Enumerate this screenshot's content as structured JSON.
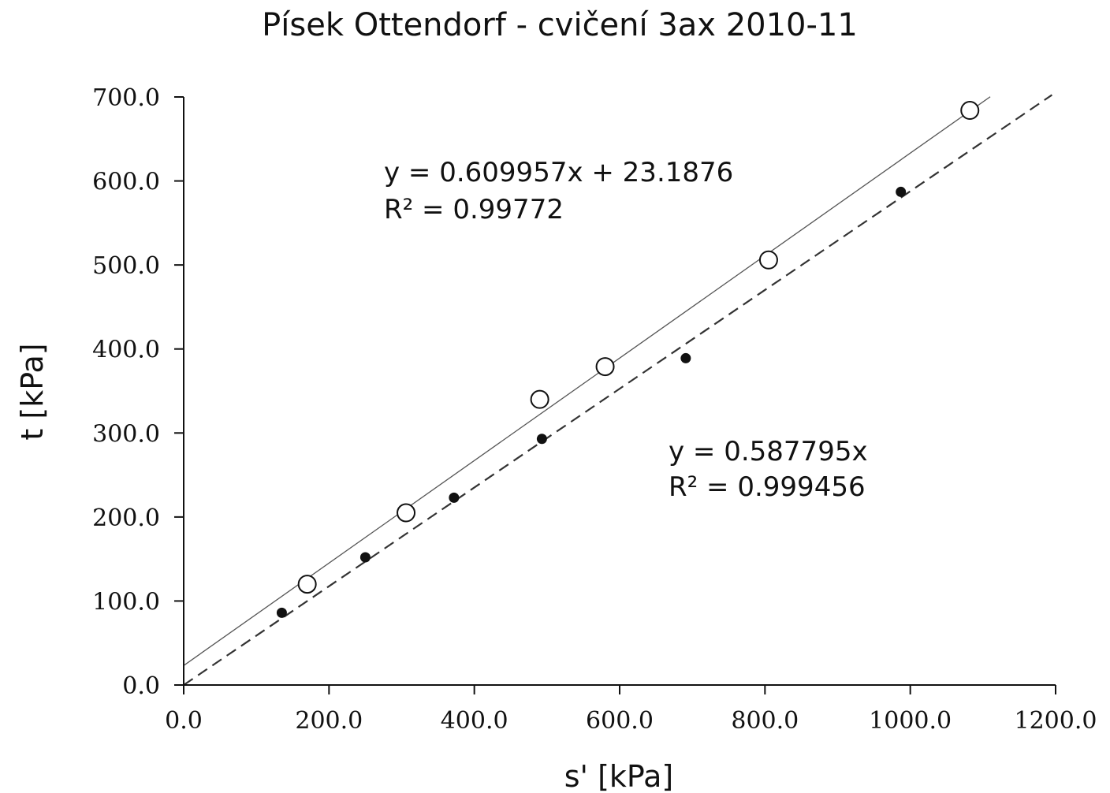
{
  "chart_data": {
    "type": "scatter",
    "title": "Písek Ottendorf - cvičení 3ax 2010-11",
    "xlabel": "s' [kPa]",
    "ylabel": "t [kPa]",
    "xlim": [
      0,
      1200
    ],
    "ylim": [
      0,
      700
    ],
    "x_ticks": [
      "0.0",
      "200.0",
      "400.0",
      "600.0",
      "800.0",
      "1000.0",
      "1200.0"
    ],
    "y_ticks": [
      "0.0",
      "100.0",
      "200.0",
      "300.0",
      "400.0",
      "500.0",
      "600.0",
      "700.0"
    ],
    "grid": false,
    "series": [
      {
        "marker": "open-circle",
        "color": "#111111",
        "points": [
          {
            "x": 170,
            "y": 120
          },
          {
            "x": 306,
            "y": 205
          },
          {
            "x": 490,
            "y": 340
          },
          {
            "x": 580,
            "y": 379
          },
          {
            "x": 805,
            "y": 506
          },
          {
            "x": 1082,
            "y": 684
          }
        ]
      },
      {
        "marker": "filled-circle",
        "color": "#111111",
        "points": [
          {
            "x": 135,
            "y": 86
          },
          {
            "x": 250,
            "y": 152
          },
          {
            "x": 372,
            "y": 223
          },
          {
            "x": 493,
            "y": 293
          },
          {
            "x": 691,
            "y": 389
          },
          {
            "x": 987,
            "y": 587
          }
        ]
      }
    ],
    "trendlines": [
      {
        "style": "solid-thin",
        "slope": 0.609957,
        "intercept": 23.1876,
        "x_range": [
          0,
          1110
        ],
        "equation": "y = 0.609957x + 23.1876",
        "r2": "R² = 0.99772"
      },
      {
        "style": "dashed",
        "slope": 0.587795,
        "intercept": 0,
        "x_range": [
          0,
          1195
        ],
        "equation": "y = 0.587795x",
        "r2": "R² = 0.999456"
      }
    ]
  }
}
